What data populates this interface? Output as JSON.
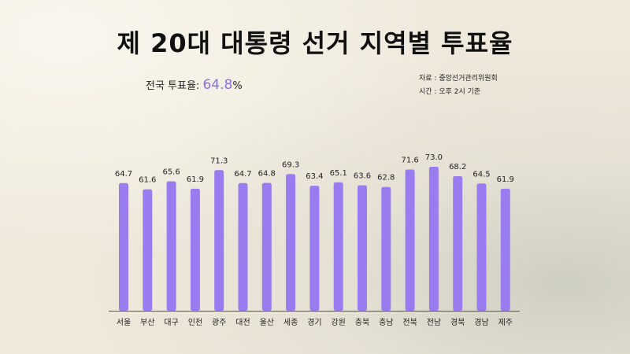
{
  "title": "제 20대 대통령 선거 지역별 투표율",
  "turnout": {
    "label": "전국 투표율:",
    "value": "64.8",
    "unit": "%"
  },
  "source": {
    "line1": "자료 : 중앙선거관리위원회",
    "line2": "시간 : 오후 2시 기준"
  },
  "colors": {
    "bar": "#9a7cf0",
    "text": "#222222",
    "accent": "#8b6fe0",
    "axis": "#555555"
  },
  "chart_data": {
    "type": "bar",
    "categories": [
      "서울",
      "부산",
      "대구",
      "인천",
      "광주",
      "대전",
      "울산",
      "세종",
      "경기",
      "강원",
      "충북",
      "충남",
      "전북",
      "전남",
      "경북",
      "경남",
      "제주"
    ],
    "values": [
      64.7,
      61.6,
      65.6,
      61.9,
      71.3,
      64.7,
      64.8,
      69.3,
      63.4,
      65.1,
      63.6,
      62.8,
      71.6,
      73.0,
      68.2,
      64.5,
      61.9
    ],
    "value_labels": [
      "64.7",
      "61.6",
      "65.6",
      "61.9",
      "71.3",
      "64.7",
      "64.8",
      "69.3",
      "63.4",
      "65.1",
      "63.6",
      "62.8",
      "71.6",
      "73.0",
      "68.2",
      "64.5",
      "61.9"
    ],
    "title": "제 20대 대통령 선거 지역별 투표율",
    "xlabel": "",
    "ylabel": "",
    "ylim": [
      0,
      73
    ],
    "grid": false,
    "legend": "none"
  }
}
